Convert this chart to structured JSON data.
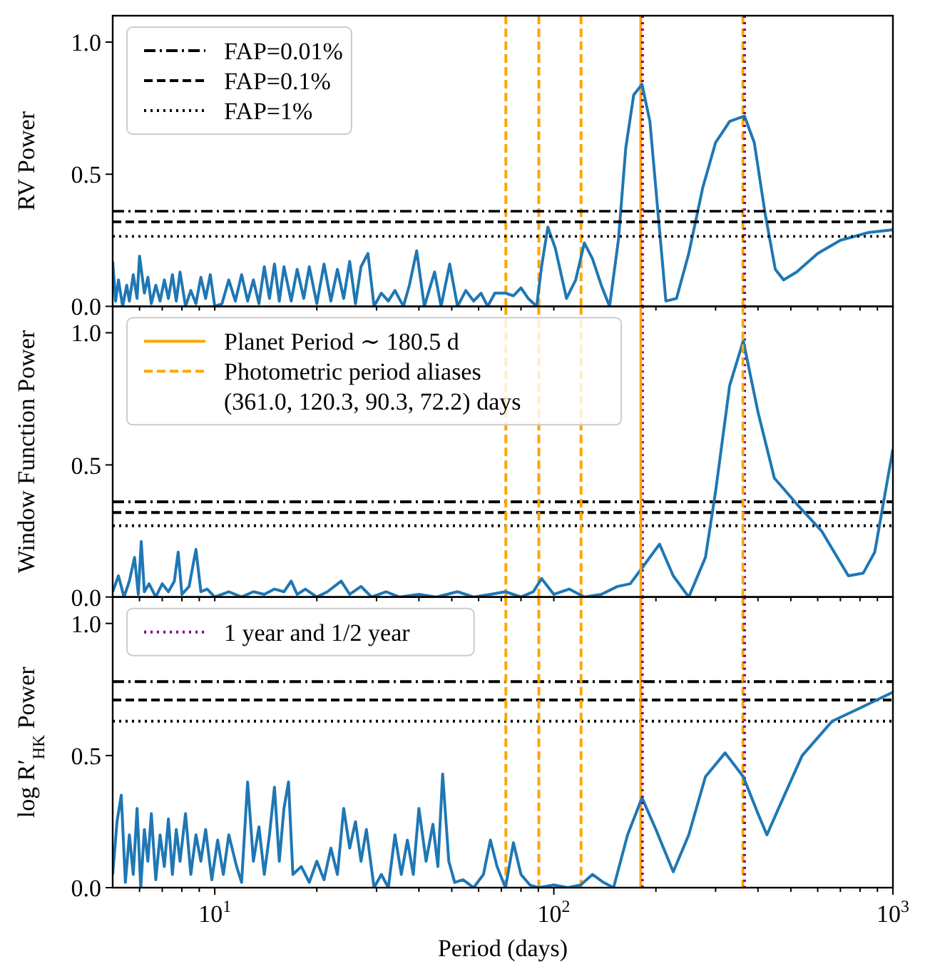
{
  "chart_data": [
    {
      "type": "line",
      "ylabel": "RV Power",
      "log": "x",
      "xlim": [
        5,
        1000
      ],
      "ylim": [
        0,
        1.1
      ],
      "tick_labels": "y",
      "legend": "top left",
      "xticks": [
        {
          "value": 6,
          "label": null
        },
        {
          "value": 7,
          "label": null
        },
        {
          "value": 8,
          "label": null
        },
        {
          "value": 9,
          "label": null
        },
        {
          "value": 10,
          "label": null
        },
        {
          "value": 20,
          "label": null
        },
        {
          "value": 30,
          "label": null
        },
        {
          "value": 40,
          "label": null
        },
        {
          "value": 50,
          "label": null
        },
        {
          "value": 60,
          "label": null
        },
        {
          "value": 70,
          "label": null
        },
        {
          "value": 80,
          "label": null
        },
        {
          "value": 90,
          "label": null
        },
        {
          "value": 100,
          "label": null
        },
        {
          "value": 200,
          "label": null
        },
        {
          "value": 300,
          "label": null
        },
        {
          "value": 400,
          "label": null
        },
        {
          "value": 500,
          "label": null
        },
        {
          "value": 600,
          "label": null
        },
        {
          "value": 700,
          "label": null
        },
        {
          "value": 800,
          "label": null
        },
        {
          "value": 900,
          "label": null
        },
        {
          "value": 1000,
          "label": null
        }
      ],
      "yticks": [
        {
          "value": 0,
          "label": "0.0"
        },
        {
          "value": 0.5,
          "label": "0.5"
        },
        {
          "value": 1,
          "label": "1.0"
        }
      ],
      "series": [
        {
          "color": "#1f77b4",
          "x": [
            5,
            5.1,
            5.2,
            5.35,
            5.5,
            5.6,
            5.75,
            5.9,
            6.0,
            6.2,
            6.35,
            6.5,
            6.7,
            6.9,
            7.1,
            7.3,
            7.5,
            7.7,
            7.9,
            8.2,
            8.5,
            8.8,
            9.1,
            9.4,
            9.7,
            10.0,
            10.5,
            11,
            11.5,
            12,
            12.5,
            13,
            13.5,
            14,
            14.5,
            15,
            15.5,
            16,
            16.8,
            17.5,
            18.3,
            19,
            20,
            21,
            22,
            23,
            24,
            25,
            26,
            27,
            28.3,
            29.5,
            31,
            32.5,
            34,
            36,
            37.5,
            39.4,
            41.5,
            44.5,
            46.5,
            49.3,
            52,
            55,
            58,
            61,
            63.8,
            67,
            72,
            76,
            80,
            84,
            89,
            92,
            96,
            101,
            109,
            116,
            123,
            130,
            138,
            146,
            155,
            163,
            172,
            182,
            192,
            203,
            214,
            230,
            250,
            275,
            300,
            330,
            365,
            390,
            420,
            450,
            476,
            520,
            600,
            700,
            850,
            1000
          ],
          "values": [
            0.17,
            0.02,
            0.1,
            0.0,
            0.08,
            0.02,
            0.12,
            0.03,
            0.19,
            0.05,
            0.11,
            0.01,
            0.08,
            0.02,
            0.1,
            0.03,
            0.12,
            0.02,
            0.13,
            0.0,
            0.06,
            0.01,
            0.11,
            0.03,
            0.12,
            0.0,
            0.01,
            0.1,
            0.02,
            0.12,
            0.02,
            0.1,
            0.01,
            0.15,
            0.03,
            0.16,
            0.02,
            0.15,
            0.02,
            0.14,
            0.03,
            0.15,
            0.01,
            0.16,
            0.02,
            0.14,
            0.03,
            0.17,
            0.01,
            0.15,
            0.2,
            0.0,
            0.05,
            0.02,
            0.06,
            0.0,
            0.08,
            0.21,
            0.0,
            0.13,
            0.0,
            0.16,
            0.0,
            0.06,
            0.02,
            0.05,
            0.0,
            0.05,
            0.05,
            0.04,
            0.07,
            0.03,
            0.0,
            0.15,
            0.3,
            0.22,
            0.03,
            0.1,
            0.24,
            0.18,
            0.08,
            0.0,
            0.25,
            0.6,
            0.8,
            0.84,
            0.7,
            0.35,
            0.02,
            0.03,
            0.2,
            0.45,
            0.62,
            0.7,
            0.72,
            0.62,
            0.35,
            0.14,
            0.1,
            0.13,
            0.2,
            0.25,
            0.28,
            0.29
          ]
        },
        {
          "name": "FAP=0.01%",
          "color": "#000000",
          "line_style": "dashdot",
          "x": [
            5,
            1000
          ],
          "values": [
            0.36,
            0.36
          ]
        },
        {
          "name": "FAP=0.1%",
          "color": "#000000",
          "line_style": "dashed",
          "x": [
            5,
            1000
          ],
          "values": [
            0.32,
            0.32
          ]
        },
        {
          "name": "FAP=1%",
          "color": "#000000",
          "line_style": "dotted",
          "x": [
            5,
            1000
          ],
          "values": [
            0.265,
            0.265
          ]
        }
      ],
      "ref_lines": [
        {
          "axis": "x",
          "value": 180.5,
          "label": null,
          "color": "#ffa500",
          "line_style": "solid"
        },
        {
          "axis": "x",
          "value": 361.0,
          "label": null,
          "color": "#ffa500",
          "line_style": "dashed"
        },
        {
          "axis": "x",
          "value": 120.3,
          "label": null,
          "color": "#ffa500",
          "line_style": "dashed"
        },
        {
          "axis": "x",
          "value": 90.3,
          "label": null,
          "color": "#ffa500",
          "line_style": "dashed"
        },
        {
          "axis": "x",
          "value": 72.2,
          "label": null,
          "color": "#ffa500",
          "line_style": "dashed"
        },
        {
          "axis": "x",
          "value": 182.6,
          "label": null,
          "color": "#800080",
          "line_style": "dotted"
        },
        {
          "axis": "x",
          "value": 365.25,
          "label": null,
          "color": "#800080",
          "line_style": "dotted"
        }
      ]
    },
    {
      "type": "line",
      "ylabel": "Window Function Power",
      "log": "x",
      "xlim": [
        5,
        1000
      ],
      "ylim": [
        0,
        1.1
      ],
      "tick_labels": "y",
      "legend": "top left",
      "xticks": [
        {
          "value": 6,
          "label": null
        },
        {
          "value": 7,
          "label": null
        },
        {
          "value": 8,
          "label": null
        },
        {
          "value": 9,
          "label": null
        },
        {
          "value": 10,
          "label": null
        },
        {
          "value": 20,
          "label": null
        },
        {
          "value": 30,
          "label": null
        },
        {
          "value": 40,
          "label": null
        },
        {
          "value": 50,
          "label": null
        },
        {
          "value": 60,
          "label": null
        },
        {
          "value": 70,
          "label": null
        },
        {
          "value": 80,
          "label": null
        },
        {
          "value": 90,
          "label": null
        },
        {
          "value": 100,
          "label": null
        },
        {
          "value": 200,
          "label": null
        },
        {
          "value": 300,
          "label": null
        },
        {
          "value": 400,
          "label": null
        },
        {
          "value": 500,
          "label": null
        },
        {
          "value": 600,
          "label": null
        },
        {
          "value": 700,
          "label": null
        },
        {
          "value": 800,
          "label": null
        },
        {
          "value": 900,
          "label": null
        },
        {
          "value": 1000,
          "label": null
        }
      ],
      "yticks": [
        {
          "value": 0,
          "label": "0.0"
        },
        {
          "value": 0.5,
          "label": "0.5"
        },
        {
          "value": 1,
          "label": "1.0"
        }
      ],
      "series": [
        {
          "color": "#1f77b4",
          "x": [
            5,
            5.2,
            5.4,
            5.6,
            5.8,
            5.95,
            6.07,
            6.2,
            6.4,
            6.7,
            7.0,
            7.3,
            7.6,
            7.8,
            8.0,
            8.4,
            8.8,
            9.1,
            9.5,
            10,
            11,
            12,
            13,
            14,
            15,
            16,
            16.8,
            17.5,
            18.5,
            20,
            21.5,
            23.6,
            25,
            27,
            29,
            32,
            35,
            40,
            45,
            52,
            58,
            65,
            72,
            80,
            87,
            92,
            100,
            111,
            123,
            138,
            154,
            168,
            182,
            205,
            225,
            250,
            280,
            300,
            330,
            362,
            400,
            447,
            522,
            616,
            739,
            817,
            884,
            1000
          ],
          "values": [
            0.02,
            0.08,
            0.0,
            0.06,
            0.15,
            0.01,
            0.21,
            0.02,
            0.05,
            0.0,
            0.05,
            0.02,
            0.06,
            0.17,
            0.01,
            0.04,
            0.18,
            0.02,
            0.03,
            0.0,
            0.02,
            0.0,
            0.02,
            0.01,
            0.03,
            0.02,
            0.06,
            0.01,
            0.03,
            0.0,
            0.02,
            0.06,
            0.01,
            0.04,
            0.0,
            0.02,
            0.0,
            0.01,
            0.0,
            0.02,
            0.0,
            0.01,
            0.02,
            0.0,
            0.02,
            0.07,
            0.01,
            0.03,
            0.0,
            0.01,
            0.04,
            0.05,
            0.11,
            0.2,
            0.08,
            0.0,
            0.15,
            0.4,
            0.8,
            0.97,
            0.7,
            0.45,
            0.35,
            0.25,
            0.08,
            0.09,
            0.17,
            0.56
          ]
        },
        {
          "name": "Planet Period ∼ 180.5 d",
          "color": "#ffa500",
          "line_style": "solid",
          "x": [
            180.5,
            180.5
          ],
          "values": [
            0,
            1.1
          ]
        },
        {
          "name": "Photometric period aliases\n(361.0, 120.3, 90.3, 72.2) days",
          "color": "#ffa500",
          "line_style": "dashed",
          "x": [
            361.0,
            361.0
          ],
          "values": [
            0,
            1.1
          ]
        }
      ],
      "ref_lines": [
        {
          "axis": "y",
          "value": 0.36,
          "label": null,
          "color": "#000000",
          "line_style": "dashdot"
        },
        {
          "axis": "y",
          "value": 0.32,
          "label": null,
          "color": "#000000",
          "line_style": "dashed"
        },
        {
          "axis": "y",
          "value": 0.27,
          "label": null,
          "color": "#000000",
          "line_style": "dotted"
        },
        {
          "axis": "x",
          "value": 120.3,
          "label": null,
          "color": "#ffa500",
          "line_style": "dashed"
        },
        {
          "axis": "x",
          "value": 90.3,
          "label": null,
          "color": "#ffa500",
          "line_style": "dashed"
        },
        {
          "axis": "x",
          "value": 72.2,
          "label": null,
          "color": "#ffa500",
          "line_style": "dashed"
        },
        {
          "axis": "x",
          "value": 182.6,
          "label": null,
          "color": "#800080",
          "line_style": "dotted"
        },
        {
          "axis": "x",
          "value": 365.25,
          "label": null,
          "color": "#800080",
          "line_style": "dotted"
        }
      ]
    },
    {
      "type": "line",
      "ylabel": "log R′$_{HK}$ Power",
      "xlabel": "Period (days)",
      "log": "x",
      "xlim": [
        5,
        1000
      ],
      "ylim": [
        0,
        1.1
      ],
      "legend": "top left",
      "xticks": [
        {
          "value": 6,
          "label": null
        },
        {
          "value": 7,
          "label": null
        },
        {
          "value": 8,
          "label": null
        },
        {
          "value": 9,
          "label": null
        },
        {
          "value": 10,
          "label": "10$^{1}$"
        },
        {
          "value": 20,
          "label": null
        },
        {
          "value": 30,
          "label": null
        },
        {
          "value": 40,
          "label": null
        },
        {
          "value": 50,
          "label": null
        },
        {
          "value": 60,
          "label": null
        },
        {
          "value": 70,
          "label": null
        },
        {
          "value": 80,
          "label": null
        },
        {
          "value": 90,
          "label": null
        },
        {
          "value": 100,
          "label": "10$^{2}$"
        },
        {
          "value": 200,
          "label": null
        },
        {
          "value": 300,
          "label": null
        },
        {
          "value": 400,
          "label": null
        },
        {
          "value": 500,
          "label": null
        },
        {
          "value": 600,
          "label": null
        },
        {
          "value": 700,
          "label": null
        },
        {
          "value": 800,
          "label": null
        },
        {
          "value": 900,
          "label": null
        },
        {
          "value": 1000,
          "label": "10$^{3}$"
        }
      ],
      "yticks": [
        {
          "value": 0,
          "label": "0.0"
        },
        {
          "value": 0.5,
          "label": "0.5"
        },
        {
          "value": 1,
          "label": "1.0"
        }
      ],
      "series": [
        {
          "color": "#1f77b4",
          "x": [
            5,
            5.15,
            5.3,
            5.45,
            5.6,
            5.75,
            5.9,
            6.05,
            6.2,
            6.35,
            6.5,
            6.7,
            6.9,
            7.1,
            7.3,
            7.5,
            7.7,
            7.9,
            8.2,
            8.5,
            8.8,
            9.1,
            9.4,
            9.8,
            10.2,
            10.6,
            11,
            11.6,
            12.0,
            12.5,
            13,
            13.5,
            14,
            14.5,
            15,
            15.5,
            16,
            16.5,
            17,
            18,
            19,
            20,
            21,
            22,
            23,
            24,
            25,
            26,
            27,
            28,
            29.5,
            31,
            32.5,
            34,
            35.5,
            37,
            38.5,
            40,
            42,
            44,
            45.5,
            47,
            49,
            51,
            54,
            58,
            62,
            65,
            68,
            72,
            76,
            80,
            85,
            90,
            100,
            110,
            120,
            130,
            140,
            150,
            165,
            182,
            200,
            225,
            250,
            280,
            320,
            362,
            400,
            425,
            460,
            540,
            662,
            800,
            1000
          ],
          "values": [
            0.05,
            0.25,
            0.35,
            0.02,
            0.2,
            0.05,
            0.3,
            0.0,
            0.22,
            0.1,
            0.28,
            0.03,
            0.2,
            0.08,
            0.26,
            0.05,
            0.22,
            0.1,
            0.28,
            0.05,
            0.2,
            0.1,
            0.22,
            0.03,
            0.18,
            0.05,
            0.2,
            0.08,
            0.02,
            0.4,
            0.1,
            0.23,
            0.05,
            0.2,
            0.38,
            0.1,
            0.3,
            0.4,
            0.05,
            0.08,
            0.02,
            0.1,
            0.03,
            0.15,
            0.05,
            0.3,
            0.15,
            0.25,
            0.1,
            0.22,
            0.0,
            0.05,
            0.0,
            0.2,
            0.05,
            0.18,
            0.05,
            0.3,
            0.1,
            0.24,
            0.08,
            0.43,
            0.1,
            0.02,
            0.03,
            0.0,
            0.05,
            0.18,
            0.08,
            0.0,
            0.17,
            0.05,
            0.01,
            0.0,
            0.01,
            0.0,
            0.01,
            0.05,
            0.02,
            0.0,
            0.2,
            0.34,
            0.22,
            0.06,
            0.2,
            0.42,
            0.51,
            0.42,
            0.28,
            0.2,
            0.3,
            0.5,
            0.63,
            0.68,
            0.74
          ]
        },
        {
          "name": "1 year and 1/2 year",
          "color": "#800080",
          "line_style": "dotted",
          "x": [
            182.6,
            182.6
          ],
          "values": [
            0,
            1.1
          ]
        }
      ],
      "ref_lines": [
        {
          "axis": "y",
          "value": 0.78,
          "label": null,
          "color": "#000000",
          "line_style": "dashdot"
        },
        {
          "axis": "y",
          "value": 0.71,
          "label": null,
          "color": "#000000",
          "line_style": "dashed"
        },
        {
          "axis": "y",
          "value": 0.63,
          "label": null,
          "color": "#000000",
          "line_style": "dotted"
        },
        {
          "axis": "x",
          "value": 180.5,
          "label": null,
          "color": "#ffa500",
          "line_style": "solid"
        },
        {
          "axis": "x",
          "value": 361.0,
          "label": null,
          "color": "#ffa500",
          "line_style": "dashed"
        },
        {
          "axis": "x",
          "value": 120.3,
          "label": null,
          "color": "#ffa500",
          "line_style": "dashed"
        },
        {
          "axis": "x",
          "value": 90.3,
          "label": null,
          "color": "#ffa500",
          "line_style": "dashed"
        },
        {
          "axis": "x",
          "value": 72.2,
          "label": null,
          "color": "#ffa500",
          "line_style": "dashed"
        },
        {
          "axis": "x",
          "value": 365.25,
          "label": null,
          "color": "#800080",
          "line_style": "dotted"
        }
      ]
    }
  ]
}
